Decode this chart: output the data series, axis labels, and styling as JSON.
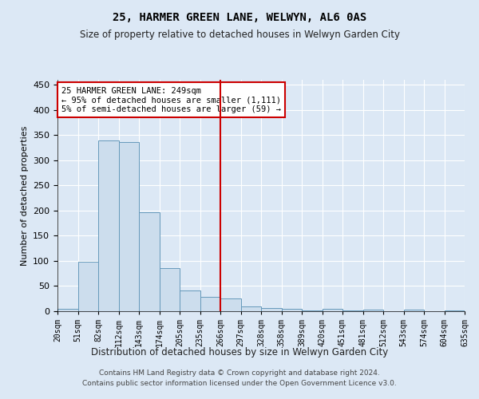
{
  "title": "25, HARMER GREEN LANE, WELWYN, AL6 0AS",
  "subtitle": "Size of property relative to detached houses in Welwyn Garden City",
  "xlabel": "Distribution of detached houses by size in Welwyn Garden City",
  "ylabel": "Number of detached properties",
  "footer_line1": "Contains HM Land Registry data © Crown copyright and database right 2024.",
  "footer_line2": "Contains public sector information licensed under the Open Government Licence v3.0.",
  "bins": [
    "20sqm",
    "51sqm",
    "82sqm",
    "112sqm",
    "143sqm",
    "174sqm",
    "205sqm",
    "235sqm",
    "266sqm",
    "297sqm",
    "328sqm",
    "358sqm",
    "389sqm",
    "420sqm",
    "451sqm",
    "481sqm",
    "512sqm",
    "543sqm",
    "574sqm",
    "604sqm",
    "635sqm"
  ],
  "bar_values": [
    5,
    98,
    340,
    337,
    197,
    85,
    42,
    29,
    26,
    10,
    6,
    4,
    1,
    5,
    1,
    3,
    0,
    3,
    0,
    2
  ],
  "bar_color": "#ccdded",
  "bar_edge_color": "#6699bb",
  "vline_color": "#cc0000",
  "vline_pos": 8.0,
  "ylim": [
    0,
    460
  ],
  "yticks": [
    0,
    50,
    100,
    150,
    200,
    250,
    300,
    350,
    400,
    450
  ],
  "annotation_text": "25 HARMER GREEN LANE: 249sqm\n← 95% of detached houses are smaller (1,111)\n5% of semi-detached houses are larger (59) →",
  "annotation_box_color": "#ffffff",
  "annotation_box_edge": "#cc0000",
  "bg_color": "#dce8f5",
  "plot_bg_color": "#dce8f5"
}
